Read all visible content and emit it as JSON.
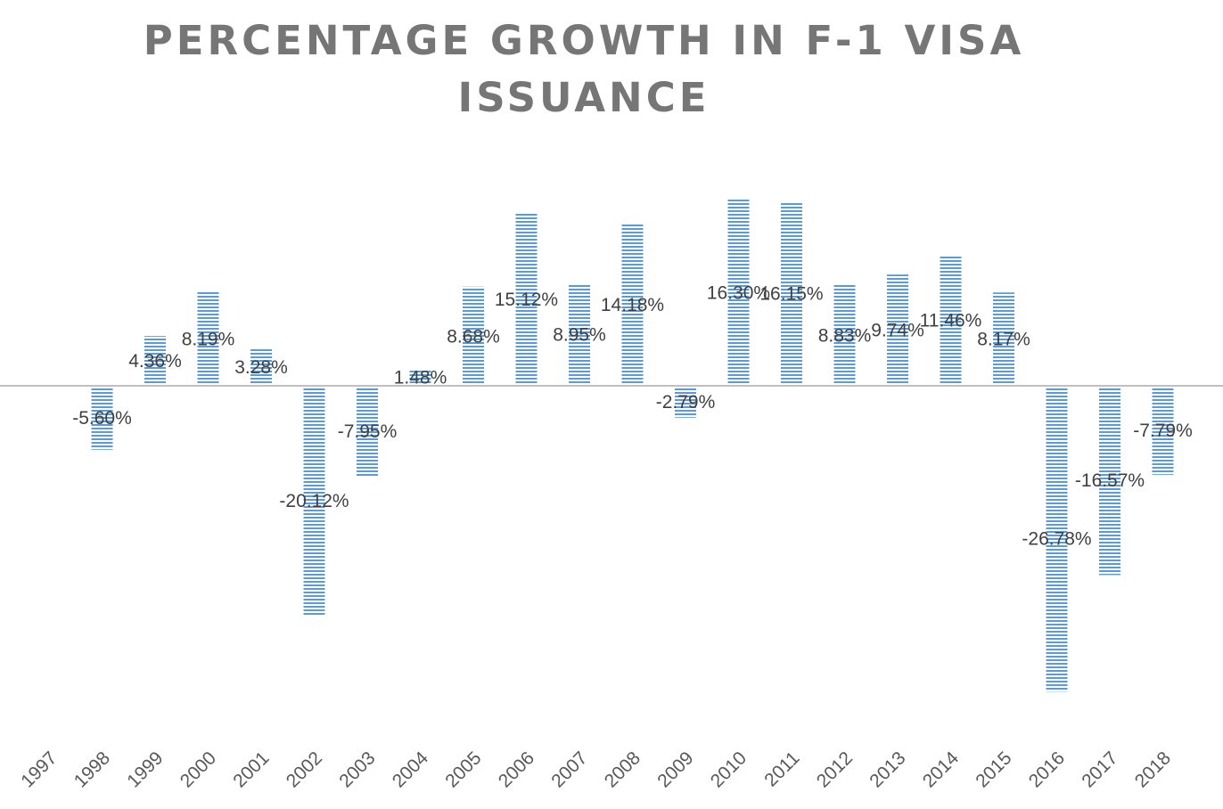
{
  "chart_data": {
    "type": "bar",
    "title": "PERCENTAGE GROWTH IN F-1 VISA ISSUANCE",
    "xlabel": "",
    "ylabel": "",
    "categories": [
      "1997",
      "1998",
      "1999",
      "2000",
      "2001",
      "2002",
      "2003",
      "2004",
      "2005",
      "2006",
      "2007",
      "2008",
      "2009",
      "2010",
      "2011",
      "2012",
      "2013",
      "2014",
      "2015",
      "2016",
      "2017",
      "2018"
    ],
    "series": [
      {
        "values": [
          null,
          -5.6,
          4.36,
          8.19,
          3.28,
          -20.12,
          -7.95,
          1.48,
          8.68,
          15.12,
          8.95,
          14.18,
          -2.79,
          16.3,
          16.15,
          8.83,
          9.74,
          11.46,
          8.17,
          -26.78,
          -16.57,
          -7.79
        ],
        "labels": [
          "",
          "-5.60%",
          "4.36%",
          "8.19%",
          "3.28%",
          "-20.12%",
          "-7.95%",
          "1.48%",
          "8.68%",
          "15.12%",
          "8.95%",
          "14.18%",
          "-2.79%",
          "16.30%",
          "16.15%",
          "8.83%",
          "9.74%",
          "11.46%",
          "8.17%",
          "-26.78%",
          "-16.57%",
          "-7.79%"
        ],
        "color": "#5B9BD5"
      }
    ],
    "value_format": "percent",
    "ylim": [
      -30,
      20
    ],
    "grid": false,
    "legend": "none",
    "bar_pattern": "horizontal-stripes"
  }
}
